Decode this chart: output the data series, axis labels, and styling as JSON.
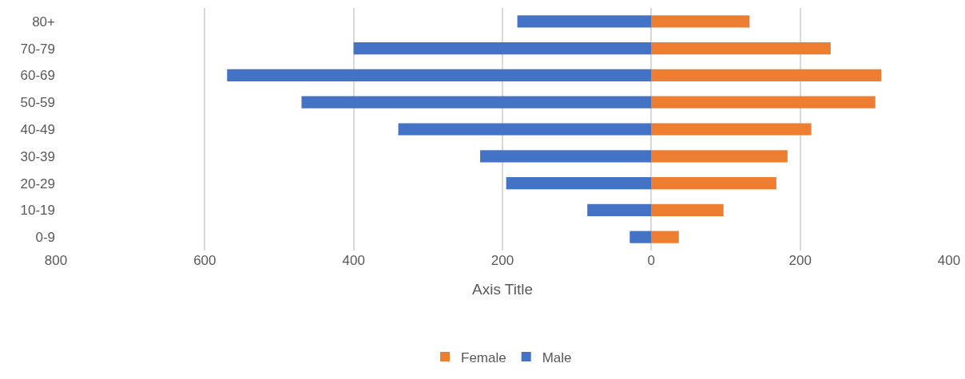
{
  "chart_data": {
    "type": "bar",
    "orientation": "horizontal",
    "stacked": true,
    "xlabel": "Axis Title",
    "categories": [
      "80+",
      "70-79",
      "60-69",
      "50-59",
      "40-49",
      "30-39",
      "20-29",
      "10-19",
      "0-9"
    ],
    "series": [
      {
        "name": "Female",
        "color": "#ed7d31",
        "values": [
          132,
          241,
          309,
          301,
          215,
          183,
          168,
          97,
          37
        ]
      },
      {
        "name": "Male",
        "color": "#4472c4",
        "values": [
          -180,
          -400,
          -570,
          -470,
          -340,
          -230,
          -195,
          -86,
          -29
        ]
      }
    ],
    "xlim": [
      -800,
      400
    ],
    "xticks": [
      {
        "value": -800,
        "label": "800"
      },
      {
        "value": -600,
        "label": "600"
      },
      {
        "value": -400,
        "label": "400"
      },
      {
        "value": -200,
        "label": "200"
      },
      0,
      200,
      400
    ],
    "grid": "x",
    "legend": "bottom"
  }
}
